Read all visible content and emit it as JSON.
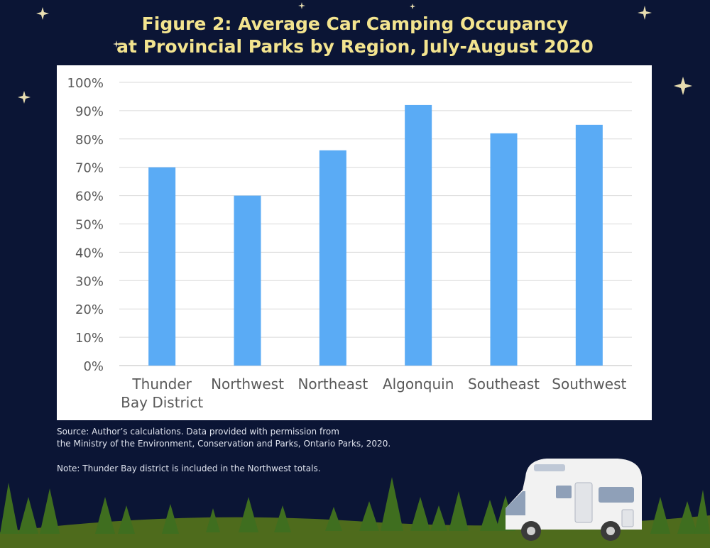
{
  "title_line1": "Figure 2: Average Car Camping Occupancy",
  "title_line2": "at Provincial Parks by Region, July-August 2020",
  "source_line1": "Source: Author’s calculations. Data provided with permission from",
  "source_line2": "the Ministry of the Environment, Conservation and Parks, Ontario Parks, 2020.",
  "note": "Note: Thunder Bay district is included in the Northwest totals.",
  "colors": {
    "background": "#0b1535",
    "title": "#f3e48f",
    "bar": "#5aabf5",
    "grass": "#4e6b1c",
    "tree": "#3f6e1f"
  },
  "chart_data": {
    "type": "bar",
    "categories": [
      "Thunder\nBay District",
      "Northwest",
      "Northeast",
      "Algonquin",
      "Southeast",
      "Southwest"
    ],
    "values": [
      70,
      60,
      76,
      92,
      82,
      85
    ],
    "yticks": [
      "0%",
      "10%",
      "20%",
      "30%",
      "40%",
      "50%",
      "60%",
      "70%",
      "80%",
      "90%",
      "100%"
    ],
    "ylim": [
      0,
      100
    ],
    "grid": true,
    "legend": "none"
  }
}
